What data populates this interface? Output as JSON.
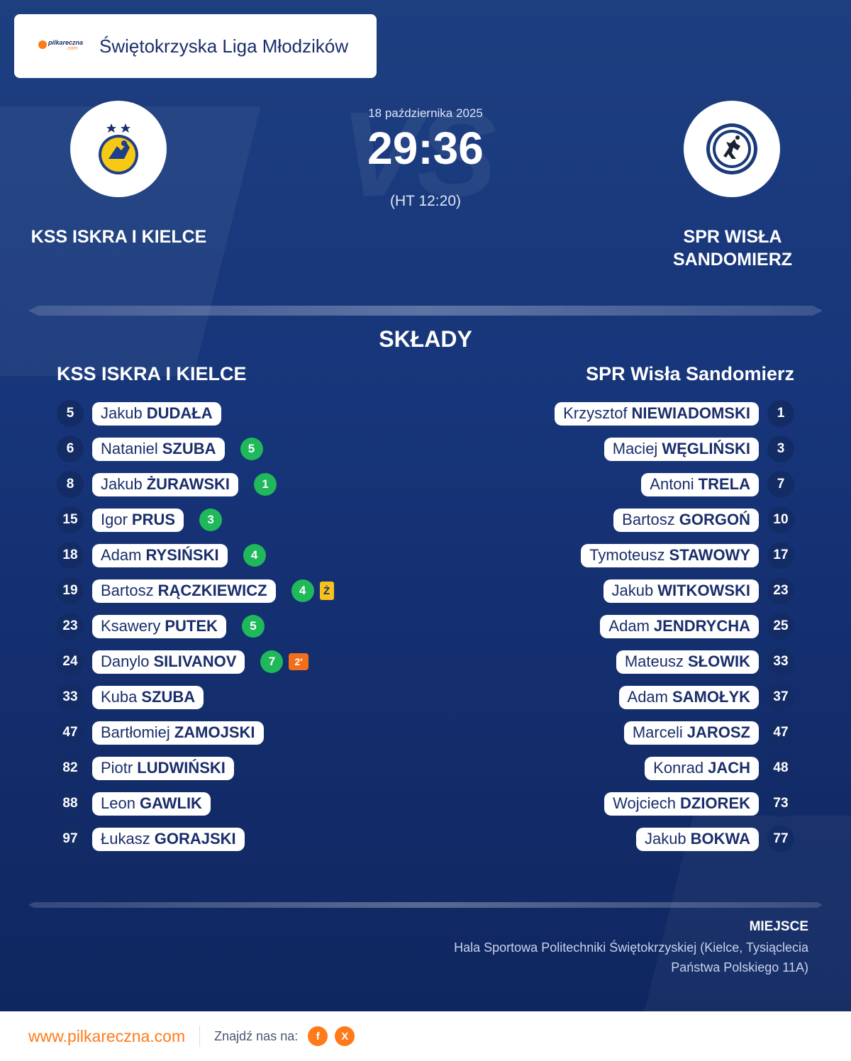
{
  "header": {
    "logo_text": "pilkareczna",
    "logo_suffix": ".com",
    "league": "Świętokrzyska Liga Młodzików"
  },
  "match": {
    "date": "18 października 2025",
    "score": "29:36",
    "halftime": "(HT 12:20)",
    "home_team": "KSS ISKRA I KIELCE",
    "away_team_line1": "SPR WISŁA",
    "away_team_line2": "SANDOMIERZ"
  },
  "lineups": {
    "title": "SKŁADY",
    "home_title": "KSS ISKRA I KIELCE",
    "away_title": "SPR Wisła Sandomierz",
    "home": [
      {
        "num": "5",
        "first": "Jakub",
        "last": "DUDAŁA",
        "goals": "",
        "card": "",
        "susp": ""
      },
      {
        "num": "6",
        "first": "Nataniel",
        "last": "SZUBA",
        "goals": "5",
        "card": "",
        "susp": ""
      },
      {
        "num": "8",
        "first": "Jakub",
        "last": "ŻURAWSKI",
        "goals": "1",
        "card": "",
        "susp": ""
      },
      {
        "num": "15",
        "first": "Igor",
        "last": "PRUS",
        "goals": "3",
        "card": "",
        "susp": ""
      },
      {
        "num": "18",
        "first": "Adam",
        "last": "RYSIŃSKI",
        "goals": "4",
        "card": "",
        "susp": ""
      },
      {
        "num": "19",
        "first": "Bartosz",
        "last": "RĄCZKIEWICZ",
        "goals": "4",
        "card": "Ż",
        "susp": ""
      },
      {
        "num": "23",
        "first": "Ksawery",
        "last": "PUTEK",
        "goals": "5",
        "card": "",
        "susp": ""
      },
      {
        "num": "24",
        "first": "Danylo",
        "last": "SILIVANOV",
        "goals": "7",
        "card": "",
        "susp": "2'"
      },
      {
        "num": "33",
        "first": "Kuba",
        "last": "SZUBA",
        "goals": "",
        "card": "",
        "susp": ""
      },
      {
        "num": "47",
        "first": "Bartłomiej",
        "last": "ZAMOJSKI",
        "goals": "",
        "card": "",
        "susp": ""
      },
      {
        "num": "82",
        "first": "Piotr",
        "last": "LUDWIŃSKI",
        "goals": "",
        "card": "",
        "susp": ""
      },
      {
        "num": "88",
        "first": "Leon",
        "last": "GAWLIK",
        "goals": "",
        "card": "",
        "susp": ""
      },
      {
        "num": "97",
        "first": "Łukasz",
        "last": "GORAJSKI",
        "goals": "",
        "card": "",
        "susp": ""
      }
    ],
    "away": [
      {
        "num": "1",
        "first": "Krzysztof",
        "last": "NIEWIADOMSKI"
      },
      {
        "num": "3",
        "first": "Maciej",
        "last": "WĘGLIŃSKI"
      },
      {
        "num": "7",
        "first": "Antoni",
        "last": "TRELA"
      },
      {
        "num": "10",
        "first": "Bartosz",
        "last": "GORGOŃ"
      },
      {
        "num": "17",
        "first": "Tymoteusz",
        "last": "STAWOWY"
      },
      {
        "num": "23",
        "first": "Jakub",
        "last": "WITKOWSKI"
      },
      {
        "num": "25",
        "first": "Adam",
        "last": "JENDRYCHA"
      },
      {
        "num": "33",
        "first": "Mateusz",
        "last": "SŁOWIK"
      },
      {
        "num": "37",
        "first": "Adam",
        "last": "SAMOŁYK"
      },
      {
        "num": "47",
        "first": "Marceli",
        "last": "JAROSZ"
      },
      {
        "num": "48",
        "first": "Konrad",
        "last": "JACH"
      },
      {
        "num": "73",
        "first": "Wojciech",
        "last": "DZIOREK"
      },
      {
        "num": "77",
        "first": "Jakub",
        "last": "BOKWA"
      }
    ]
  },
  "venue": {
    "label": "MIEJSCE",
    "text": "Hala Sportowa Politechniki Świętokrzyskiej (Kielce, Tysiąclecia Państwa Polskiego 11A)"
  },
  "footer": {
    "url": "www.pilkareczna.com",
    "find_us": "Znajdź nas na:",
    "social": [
      {
        "icon": "facebook-icon",
        "glyph": "f"
      },
      {
        "icon": "x-icon",
        "glyph": "X"
      }
    ]
  },
  "colors": {
    "background": "#1a3a78",
    "accent": "#ff7a1a",
    "goal_badge": "#1fb85a",
    "yellow_card": "#f7c21b",
    "suspension": "#f46d1b",
    "text_dark": "#1a2e6b"
  }
}
